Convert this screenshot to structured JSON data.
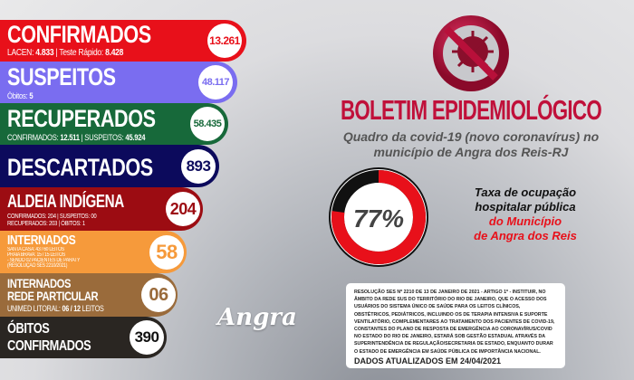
{
  "stats": {
    "confirmados": {
      "label": "CONFIRMADOS",
      "value": "13.261",
      "sub_a_label": "LACEN:",
      "sub_a_value": "4.833",
      "sep": "|",
      "sub_b_label": "Teste Rápido:",
      "sub_b_value": "8.428",
      "color": "#e8101a"
    },
    "suspeitos": {
      "label": "SUSPEITOS",
      "value": "48.117",
      "sub_label": "Óbitos:",
      "sub_value": "5",
      "color": "#7a6df0"
    },
    "recuperados": {
      "label": "RECUPERADOS",
      "value": "58.435",
      "sub_a_label": "CONFIRMADOS:",
      "sub_a_value": "12.511",
      "sep": "|",
      "sub_b_label": "SUSPEITOS:",
      "sub_b_value": "45.924",
      "color": "#17693a"
    },
    "descartados": {
      "label": "DESCARTADOS",
      "value": "893",
      "color": "#0c0a5c"
    },
    "aldeia": {
      "label": "ALDEIA INDÍGENA",
      "value": "204",
      "line1": "CONFIRMADOS: 204 | SUSPEITOS: 00",
      "line2": "RECUPERADOS: 203 | ÓBITOS: 1",
      "color": "#9c0c12"
    },
    "internados": {
      "label": "INTERNADOS",
      "value": "58",
      "line1": "SANTA CASA: 43 / 60 LEITOS",
      "line2": "PRAIA BRAVA: 15 / 15 LEITOS",
      "line3": "- SENDO 02 PACIENTES DE PARATY",
      "line4": "(RESOLUÇÃO SES 2210/2021)",
      "color": "#f69a3b"
    },
    "rede_particular": {
      "label_1": "INTERNADOS",
      "label_2": "REDE PARTICULAR",
      "value": "06",
      "sub_label": "UNIMED LITORAL:",
      "sub_a": "06",
      "sep": "/",
      "sub_b": "12",
      "sub_unit": "LEITOS",
      "color": "#9a6b3b"
    },
    "obitos": {
      "label_1": "ÓBITOS",
      "label_2": "CONFIRMADOS",
      "value": "390",
      "color": "#2a2622"
    }
  },
  "header": {
    "icon": "no-virus-icon",
    "title": "BOLETIM EPIDEMIOLÓGICO",
    "subtitle_1": "Quadro da covid-19 (novo coronavírus) no",
    "subtitle_2": "município de Angra dos Reis-RJ"
  },
  "occupancy": {
    "percent": 77,
    "label": "77%",
    "text_1": "Taxa de ocupação",
    "text_2": "hospitalar pública",
    "text_3": "do Município",
    "text_4": "de Angra dos Reis",
    "fill_color": "#e8101a",
    "rest_color": "#111111"
  },
  "note": {
    "text": "Resolução SES nº 2210 de 13 de janeiro de 2021 - Artigo 1º - Instituir, no âmbito da rede SUS do território do Rio de Janeiro, que o acesso dos usuários do Sistema Único de Saúde para os leitos clínicos, obstétricos, pediátricos, incluindo os de terapia intensiva e suporte ventilatório, complementares ao tratamento dos pacientes de Covid-19, constantes do Plano de Resposta de Emergência ao Coronavírus/Covid no Estado do Rio de Janeiro, estará sob gestão estadual através da Superintendência de Regulação/Secretaria de Estado, enquanto durar o estado de emergência em saúde pública de importância nacional.",
    "updated": "DADOS ATUALIZADOS EM 24/04/2021"
  },
  "logo": {
    "text": "Angra"
  }
}
